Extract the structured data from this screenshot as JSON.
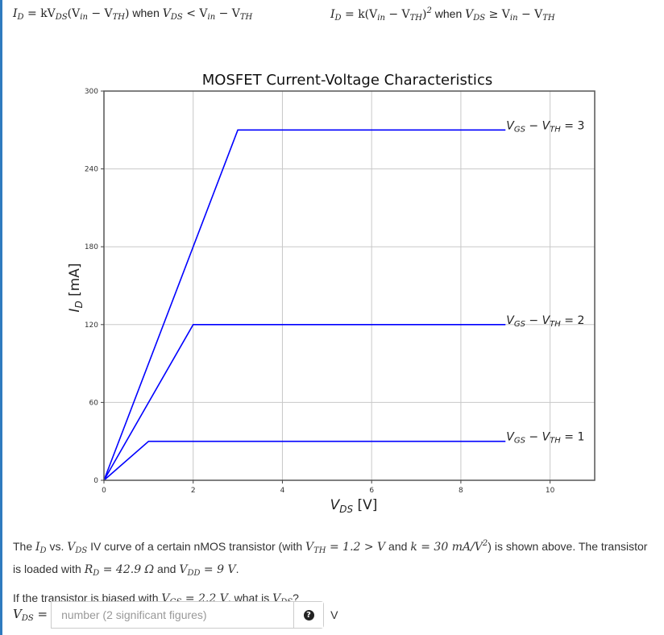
{
  "formulas": {
    "triode": {
      "lhs": "I",
      "lhs_sub": "D",
      "eq": " = kV",
      "eq_sub": "DS",
      "paren": "(V",
      "paren_sub": "in",
      "minus": " − V",
      "minus_sub": "TH",
      "close": ")",
      "when": " when ",
      "cond": "V",
      "cond_sub": "DS",
      "cond_op": " < V",
      "cond_sub2": "in",
      "cond_minus": " − V",
      "cond_sub3": "TH"
    },
    "saturation": {
      "lhs": "I",
      "lhs_sub": "D",
      "eq": " = k(V",
      "eq_sub": "in",
      "minus": " − V",
      "minus_sub": "TH",
      "close": ")",
      "exp": "2",
      "when": " when ",
      "cond": "V",
      "cond_sub": "DS",
      "cond_op": " ≥ V",
      "cond_sub2": "in",
      "cond_minus": " − V",
      "cond_sub3": "TH"
    }
  },
  "chart_data": {
    "type": "line",
    "title": "MOSFET Current-Voltage Characteristics",
    "xlabel": "V_DS [V]",
    "ylabel": "I_D [mA]",
    "xlim": [
      0,
      11
    ],
    "ylim": [
      0,
      300
    ],
    "xticks": [
      0,
      2,
      4,
      6,
      8,
      10
    ],
    "yticks": [
      0,
      60,
      120,
      180,
      240,
      300
    ],
    "grid": true,
    "line_color": "#0000ff",
    "series": [
      {
        "name": "V_GS − V_TH = 1",
        "label": "V_GS − V_TH = 1",
        "x": [
          0,
          1,
          9
        ],
        "y": [
          0,
          30,
          30
        ]
      },
      {
        "name": "V_GS − V_TH = 2",
        "label": "V_GS − V_TH = 2",
        "x": [
          0,
          2,
          9
        ],
        "y": [
          0,
          120,
          120
        ]
      },
      {
        "name": "V_GS − V_TH = 3",
        "label": "V_GS − V_TH = 3",
        "x": [
          0,
          3,
          9
        ],
        "y": [
          0,
          270,
          270
        ]
      }
    ]
  },
  "question": {
    "p1_a": "The ",
    "p1_id": "I",
    "p1_id_sub": "D",
    "p1_b": " vs. ",
    "p1_vds": "V",
    "p1_vds_sub": "DS",
    "p1_c": " IV curve of a certain nMOS transistor (with ",
    "p1_vth": "V",
    "p1_vth_sub": "TH",
    "p1_vth_val": " = 1.2 >  V",
    "p1_d": " and ",
    "p1_k": "k = 30 mA/V",
    "p1_k_exp": "2",
    "p1_e": ") is shown above. The transistor is loaded with ",
    "p1_rd": "R",
    "p1_rd_sub": "D",
    "p1_rd_val": " = 42.9 Ω",
    "p1_f": " and ",
    "p1_vdd": "V",
    "p1_vdd_sub": "DD",
    "p1_vdd_val": " = 9 V",
    "p1_g": ".",
    "p2_a": "If the transistor is biased with ",
    "p2_vgs": "V",
    "p2_vgs_sub": "GS",
    "p2_vgs_val": " = 2.2 V",
    "p2_b": ", what is ",
    "p2_vds": "V",
    "p2_vds_sub": "DS",
    "p2_c": "?"
  },
  "answer": {
    "label": "V",
    "label_sub": "DS",
    "label_eq": " =",
    "placeholder": "number (2 significant figures)",
    "value": "",
    "help_icon": "?",
    "unit": "V"
  },
  "colors": {
    "accent_border": "#2f7bbf",
    "line": "#0000ff"
  }
}
